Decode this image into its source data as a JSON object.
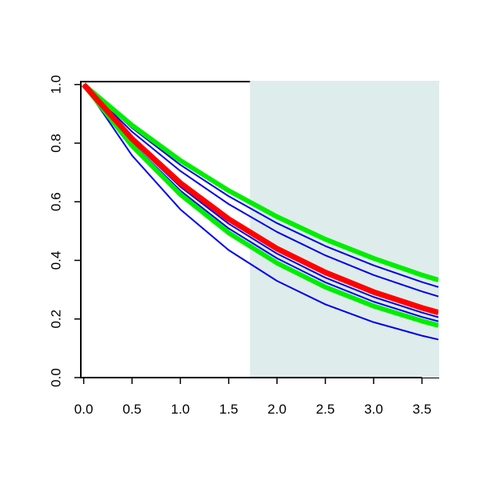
{
  "chart_data": {
    "type": "line",
    "x": [
      0,
      0.5,
      1,
      1.5,
      2,
      2.5,
      3,
      3.5,
      3.67
    ],
    "xlim": [
      -0.03,
      3.67
    ],
    "ylim": [
      0,
      1.01
    ],
    "xticks": [
      {
        "value": 0,
        "label": "0.0"
      },
      0.5,
      {
        "value": 1,
        "label": "1.0"
      },
      1.5,
      {
        "value": 2,
        "label": "2.0"
      },
      2.5,
      {
        "value": 3,
        "label": "3.0"
      },
      3.5
    ],
    "yticks": [
      {
        "value": 0,
        "label": "0.0"
      },
      0.2,
      0.4,
      0.6,
      0.8,
      {
        "value": 1,
        "label": "1.0"
      }
    ],
    "shaded_region": {
      "x": [
        1.72,
        3.67
      ],
      "color": "#dfecec"
    },
    "series": [
      {
        "color": "#0000ee",
        "line_width": 2,
        "values": [
          1,
          0.852,
          0.726,
          0.619,
          0.527,
          0.449,
          0.383,
          0.326,
          0.309
        ]
      },
      {
        "color": "#0000ee",
        "line_width": 2,
        "values": [
          1,
          0.839,
          0.705,
          0.592,
          0.497,
          0.417,
          0.35,
          0.294,
          0.277
        ]
      },
      {
        "color": "#0000ee",
        "line_width": 2,
        "values": [
          1,
          0.807,
          0.651,
          0.525,
          0.423,
          0.341,
          0.275,
          0.222,
          0.206
        ]
      },
      {
        "color": "#0000ee",
        "line_width": 2,
        "values": [
          1,
          0.799,
          0.638,
          0.509,
          0.407,
          0.325,
          0.259,
          0.207,
          0.192
        ]
      },
      {
        "color": "#0000ee",
        "line_width": 2,
        "values": [
          1,
          0.758,
          0.574,
          0.435,
          0.33,
          0.25,
          0.189,
          0.143,
          0.13
        ]
      },
      {
        "color": "#00ee00",
        "line_width": 6,
        "values": [
          1,
          0.861,
          0.741,
          0.638,
          0.549,
          0.472,
          0.407,
          0.35,
          0.333
        ]
      },
      {
        "color": "#00ee00",
        "line_width": 6,
        "values": [
          1,
          0.791,
          0.625,
          0.494,
          0.391,
          0.309,
          0.244,
          0.193,
          0.178
        ]
      },
      {
        "color": "#ff0000",
        "line_width": 7,
        "values": [
          1,
          0.815,
          0.664,
          0.541,
          0.44,
          0.359,
          0.292,
          0.238,
          0.222
        ]
      }
    ]
  }
}
